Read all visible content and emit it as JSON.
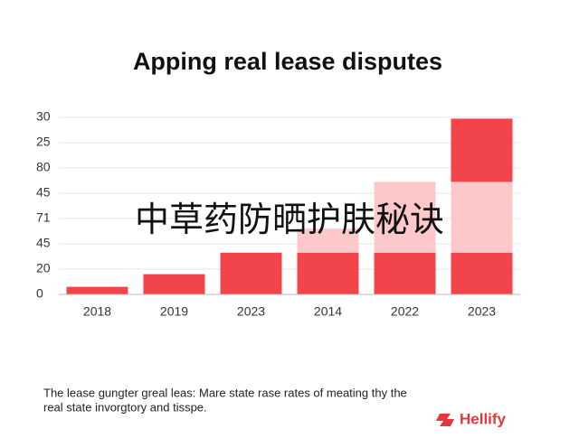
{
  "chart_data": {
    "type": "bar",
    "title": "Apping real lease disputes",
    "annotation": "中草药防晒护肤秘诀",
    "footnote": [
      "The lease gungter greal leas: Mare state rase rates of meating thy the",
      "real state invorgtory and tisspe."
    ],
    "brand": "Hellify",
    "categories": [
      "2018",
      "2019",
      "2023",
      "2014",
      "2022",
      "2023"
    ],
    "series": [
      {
        "color": "#f2444b",
        "values": [
          6,
          16,
          33,
          33,
          33,
          33
        ]
      },
      {
        "color": "#fdc8c9",
        "values": [
          0,
          0,
          0,
          19,
          56,
          56
        ]
      },
      {
        "color": "#f2444b",
        "values": [
          0,
          0,
          0,
          0,
          0,
          50
        ]
      }
    ],
    "ylim": [
      0,
      140
    ],
    "yticks": [
      0,
      20,
      {
        "value": 40,
        "label": "45"
      },
      {
        "value": 60,
        "label": "71"
      },
      {
        "value": 80,
        "label": "45"
      },
      {
        "value": 100,
        "label": "80"
      },
      {
        "value": 120,
        "label": "25"
      },
      {
        "value": 140,
        "label": "30"
      }
    ],
    "grid": true
  }
}
